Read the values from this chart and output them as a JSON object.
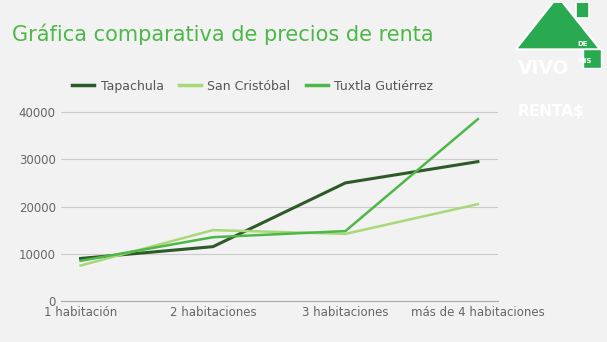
{
  "title": "Gráfica comparativa de precios de renta",
  "categories": [
    "1 habitación",
    "2 habitaciones",
    "3 habitaciones",
    "más de 4 habitaciones"
  ],
  "series": [
    {
      "label": "Tapachula",
      "values": [
        9000,
        11500,
        25000,
        29500
      ],
      "color": "#2d5a27",
      "linewidth": 2.2
    },
    {
      "label": "San Cristóbal",
      "values": [
        7500,
        15000,
        14200,
        20500
      ],
      "color": "#a8d878",
      "linewidth": 1.8
    },
    {
      "label": "Tuxtla Gutiérrez",
      "values": [
        8500,
        13500,
        14800,
        38500
      ],
      "color": "#4db848",
      "linewidth": 1.8
    }
  ],
  "ylim": [
    0,
    42000
  ],
  "yticks": [
    0,
    10000,
    20000,
    30000,
    40000
  ],
  "background_color": "#f2f2f2",
  "grid_color": "#cccccc",
  "title_color": "#4db848",
  "title_fontsize": 15,
  "legend_fontsize": 9,
  "tick_fontsize": 8.5,
  "logo_bg_color": "#2aaa50",
  "logo_text_color": "#ffffff",
  "axis_label_color": "#666666"
}
